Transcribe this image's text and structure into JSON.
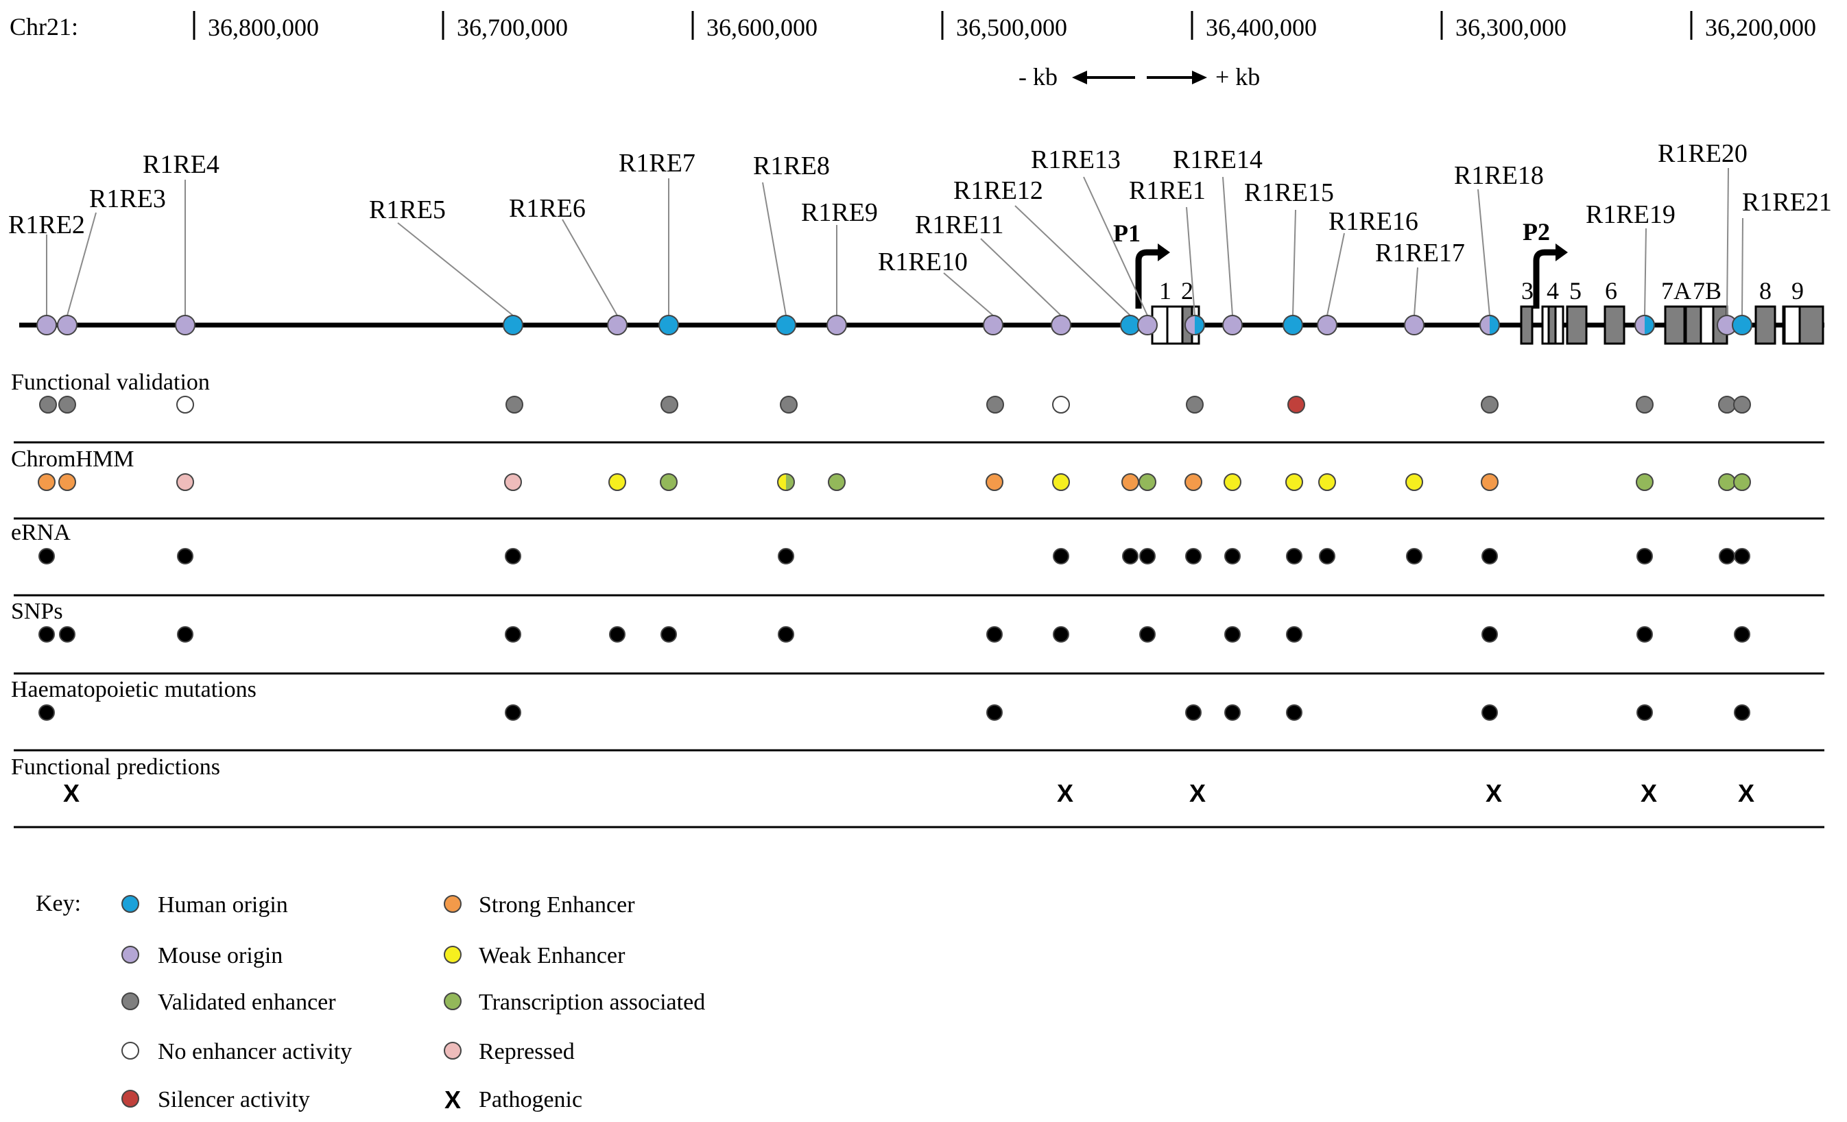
{
  "chromosome_label": "Chr21:",
  "coordinates": [
    "36,800,000",
    "36,700,000",
    "36,600,000",
    "36,500,000",
    "36,400,000",
    "36,300,000",
    "36,200,000"
  ],
  "direction": {
    "minus": "- kb",
    "plus": "+ kb"
  },
  "promoters": [
    {
      "label": "P1",
      "exon": "1"
    },
    {
      "label": "P2",
      "exon": "4"
    }
  ],
  "exons": [
    "1",
    "2",
    "3",
    "4",
    "5",
    "6",
    "7A",
    "7B",
    "8",
    "9"
  ],
  "elements": [
    {
      "name": "R1RE2",
      "origin": "mouse",
      "functional": "validated",
      "chromhmm": [
        "strong"
      ],
      "erna": 1,
      "snps": 1,
      "mutations": 1,
      "pathogenic": false
    },
    {
      "name": "R1RE3",
      "origin": "mouse",
      "functional": "validated",
      "chromhmm": [
        "strong"
      ],
      "erna": 0,
      "snps": 1,
      "mutations": 0,
      "pathogenic": true
    },
    {
      "name": "R1RE4",
      "origin": "mouse",
      "functional": "none",
      "chromhmm": [
        "repressed"
      ],
      "erna": 1,
      "snps": 1,
      "mutations": 0,
      "pathogenic": false
    },
    {
      "name": "R1RE5",
      "origin": "human",
      "functional": "validated",
      "chromhmm": [
        "repressed"
      ],
      "erna": 1,
      "snps": 1,
      "mutations": 1,
      "pathogenic": false
    },
    {
      "name": "R1RE6",
      "origin": "mouse",
      "functional": "",
      "chromhmm": [
        "weak"
      ],
      "erna": 0,
      "snps": 1,
      "mutations": 0,
      "pathogenic": false
    },
    {
      "name": "R1RE7",
      "origin": "human",
      "functional": "validated",
      "chromhmm": [
        "transcription"
      ],
      "erna": 0,
      "snps": 1,
      "mutations": 0,
      "pathogenic": false
    },
    {
      "name": "R1RE8",
      "origin": "human",
      "functional": "validated",
      "chromhmm": [
        "weak",
        "transcription"
      ],
      "erna": 1,
      "snps": 1,
      "mutations": 0,
      "pathogenic": false
    },
    {
      "name": "R1RE9",
      "origin": "mouse",
      "functional": "",
      "chromhmm": [
        "transcription"
      ],
      "erna": 0,
      "snps": 0,
      "mutations": 0,
      "pathogenic": false
    },
    {
      "name": "R1RE10",
      "origin": "mouse",
      "functional": "validated",
      "chromhmm": [
        "strong"
      ],
      "erna": 0,
      "snps": 1,
      "mutations": 1,
      "pathogenic": false
    },
    {
      "name": "R1RE11",
      "origin": "mouse",
      "functional": "none",
      "chromhmm": [
        "weak"
      ],
      "erna": 1,
      "snps": 1,
      "mutations": 0,
      "pathogenic": true
    },
    {
      "name": "R1RE12",
      "origin": "human",
      "functional": "",
      "chromhmm": [
        "strong"
      ],
      "erna": 1,
      "snps": 0,
      "mutations": 0,
      "pathogenic": false
    },
    {
      "name": "R1RE13",
      "origin": "mouse",
      "functional": "",
      "chromhmm": [
        "transcription"
      ],
      "erna": 1,
      "snps": 1,
      "mutations": 0,
      "pathogenic": false
    },
    {
      "name": "R1RE1",
      "origin": "human/mouse",
      "functional": "validated",
      "chromhmm": [
        "strong"
      ],
      "erna": 1,
      "snps": 0,
      "mutations": 1,
      "pathogenic": true
    },
    {
      "name": "R1RE14",
      "origin": "mouse",
      "functional": "",
      "chromhmm": [
        "weak"
      ],
      "erna": 1,
      "snps": 1,
      "mutations": 1,
      "pathogenic": false
    },
    {
      "name": "R1RE15",
      "origin": "human",
      "functional": "silencer",
      "chromhmm": [
        "weak"
      ],
      "erna": 1,
      "snps": 1,
      "mutations": 1,
      "pathogenic": false
    },
    {
      "name": "R1RE16",
      "origin": "mouse",
      "functional": "",
      "chromhmm": [
        "weak"
      ],
      "erna": 1,
      "snps": 0,
      "mutations": 0,
      "pathogenic": false
    },
    {
      "name": "R1RE17",
      "origin": "mouse",
      "functional": "",
      "chromhmm": [
        "weak"
      ],
      "erna": 1,
      "snps": 0,
      "mutations": 0,
      "pathogenic": false
    },
    {
      "name": "R1RE18",
      "origin": "human/mouse",
      "functional": "validated",
      "chromhmm": [
        "strong"
      ],
      "erna": 1,
      "snps": 1,
      "mutations": 1,
      "pathogenic": true
    },
    {
      "name": "R1RE19",
      "origin": "human/mouse",
      "functional": "validated",
      "chromhmm": [
        "transcription"
      ],
      "erna": 1,
      "snps": 1,
      "mutations": 1,
      "pathogenic": true
    },
    {
      "name": "R1RE20",
      "origin": "mouse",
      "functional": "validated",
      "chromhmm": [
        "transcription"
      ],
      "erna": 1,
      "snps": 0,
      "mutations": 0,
      "pathogenic": false
    },
    {
      "name": "R1RE21",
      "origin": "human",
      "functional": "validated",
      "chromhmm": [
        "transcription"
      ],
      "erna": 1,
      "snps": 1,
      "mutations": 1,
      "pathogenic": true
    }
  ],
  "tracks": [
    "Functional validation",
    "ChromHMM",
    "eRNA",
    "SNPs",
    "Haematopoietic mutations",
    "Functional predictions"
  ],
  "pathogenic_mark": "X",
  "key": {
    "title": "Key:",
    "items_left": [
      {
        "label": "Human origin",
        "color": "#1ba1d9"
      },
      {
        "label": "Mouse origin",
        "color": "#b4a6d4"
      },
      {
        "label": "Validated enhancer",
        "color": "#7f7f7f"
      },
      {
        "label": "No enhancer activity",
        "color": "#ffffff"
      },
      {
        "label": "Silencer activity",
        "color": "#c0403b"
      }
    ],
    "items_right": [
      {
        "label": "Strong Enhancer",
        "color": "#f39a4a"
      },
      {
        "label": "Weak Enhancer",
        "color": "#f6ef1f"
      },
      {
        "label": "Transcription associated",
        "color": "#93b85a"
      },
      {
        "label": "Repressed",
        "color": "#eebcbb"
      },
      {
        "label": "Pathogenic",
        "symbol": "X"
      }
    ]
  },
  "colors": {
    "human": "#1ba1d9",
    "mouse": "#b4a6d4",
    "validated": "#7f7f7f",
    "none": "#ffffff",
    "silencer": "#c0403b",
    "strong": "#f39a4a",
    "weak": "#f6ef1f",
    "transcription": "#93b85a",
    "repressed": "#eebcbb",
    "exon": "#7f7f7f",
    "exon_light": "#ffffff",
    "black": "#000000"
  }
}
